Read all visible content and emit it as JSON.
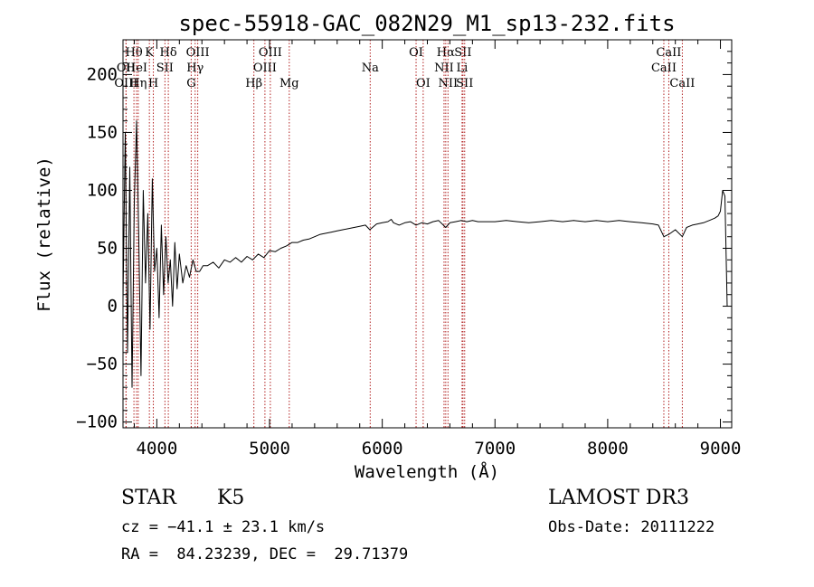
{
  "chart_data": {
    "type": "line",
    "title": "spec-55918-GAC_082N29_M1_sp13-232.fits",
    "xlabel": "Wavelength (Å)",
    "ylabel": "Flux (relative)",
    "xlim": [
      3700,
      9100
    ],
    "ylim": [
      -105,
      230
    ],
    "x_ticks": [
      4000,
      5000,
      6000,
      7000,
      8000,
      9000
    ],
    "y_ticks": [
      -100,
      -50,
      0,
      50,
      100,
      150,
      200
    ],
    "series": [
      {
        "name": "flux",
        "x": [
          3700,
          3720,
          3740,
          3760,
          3780,
          3800,
          3820,
          3840,
          3860,
          3880,
          3900,
          3920,
          3940,
          3960,
          3980,
          4000,
          4020,
          4040,
          4060,
          4080,
          4100,
          4120,
          4140,
          4160,
          4180,
          4200,
          4230,
          4260,
          4290,
          4320,
          4350,
          4380,
          4410,
          4450,
          4500,
          4550,
          4600,
          4650,
          4700,
          4750,
          4800,
          4850,
          4900,
          4950,
          5000,
          5050,
          5100,
          5150,
          5200,
          5250,
          5300,
          5350,
          5400,
          5450,
          5500,
          5550,
          5600,
          5650,
          5700,
          5750,
          5800,
          5850,
          5890,
          5950,
          6000,
          6050,
          6080,
          6100,
          6150,
          6200,
          6250,
          6300,
          6350,
          6400,
          6450,
          6500,
          6563,
          6600,
          6650,
          6700,
          6750,
          6800,
          6850,
          6900,
          6950,
          7000,
          7100,
          7200,
          7300,
          7400,
          7500,
          7600,
          7700,
          7800,
          7900,
          8000,
          8100,
          8200,
          8300,
          8400,
          8450,
          8498,
          8542,
          8600,
          8662,
          8700,
          8750,
          8800,
          8850,
          8900,
          8950,
          8980,
          9000,
          9020,
          9040,
          9060
        ],
        "y": [
          5,
          150,
          -40,
          120,
          -70,
          90,
          160,
          60,
          -60,
          100,
          20,
          80,
          -20,
          110,
          30,
          50,
          -10,
          70,
          10,
          60,
          20,
          40,
          0,
          55,
          15,
          45,
          20,
          35,
          25,
          40,
          30,
          30,
          35,
          35,
          38,
          33,
          40,
          38,
          42,
          38,
          43,
          40,
          45,
          42,
          48,
          47,
          50,
          52,
          55,
          55,
          57,
          58,
          60,
          62,
          63,
          64,
          65,
          66,
          67,
          68,
          69,
          70,
          66,
          71,
          72,
          73,
          75,
          72,
          70,
          72,
          73,
          70,
          72,
          71,
          73,
          74,
          68,
          72,
          73,
          74,
          73,
          74,
          73,
          73,
          73,
          73,
          74,
          73,
          72,
          73,
          74,
          73,
          74,
          73,
          74,
          73,
          74,
          73,
          72,
          71,
          70,
          60,
          62,
          66,
          60,
          68,
          70,
          71,
          72,
          74,
          76,
          78,
          82,
          100,
          95,
          0
        ]
      }
    ],
    "line_markers": [
      {
        "label": "Hθ",
        "x": 3797,
        "row": 1
      },
      {
        "label": "OII",
        "x": 3727,
        "row": 2
      },
      {
        "label": "OIII",
        "x": 3727,
        "row": 3
      },
      {
        "label": "HeI",
        "x": 3820,
        "row": 2
      },
      {
        "label": "Hη",
        "x": 3835,
        "row": 3
      },
      {
        "label": "K",
        "x": 3934,
        "row": 1
      },
      {
        "label": "H",
        "x": 3969,
        "row": 3
      },
      {
        "label": "SII",
        "x": 4072,
        "row": 2
      },
      {
        "label": "Hδ",
        "x": 4102,
        "row": 1
      },
      {
        "label": "OIII",
        "x": 4363,
        "row": 1
      },
      {
        "label": "Hγ",
        "x": 4340,
        "row": 2
      },
      {
        "label": "G",
        "x": 4305,
        "row": 3
      },
      {
        "label": "Hβ",
        "x": 4861,
        "row": 3
      },
      {
        "label": "OIII",
        "x": 5007,
        "row": 1
      },
      {
        "label": "OIII",
        "x": 4959,
        "row": 2
      },
      {
        "label": "Mg",
        "x": 5175,
        "row": 3
      },
      {
        "label": "Na",
        "x": 5893,
        "row": 2
      },
      {
        "label": "OI",
        "x": 6300,
        "row": 1
      },
      {
        "label": "OI",
        "x": 6363,
        "row": 3
      },
      {
        "label": "Hα",
        "x": 6563,
        "row": 1
      },
      {
        "label": "NII",
        "x": 6548,
        "row": 2
      },
      {
        "label": "NII",
        "x": 6583,
        "row": 3
      },
      {
        "label": "SII",
        "x": 6716,
        "row": 1
      },
      {
        "label": "Li",
        "x": 6708,
        "row": 2
      },
      {
        "label": "SII",
        "x": 6731,
        "row": 3
      },
      {
        "label": "CaII",
        "x": 8542,
        "row": 1
      },
      {
        "label": "CaII",
        "x": 8498,
        "row": 2
      },
      {
        "label": "CaII",
        "x": 8662,
        "row": 3
      }
    ],
    "colors": {
      "spectrum": "#000000",
      "line_markers": "#b22222",
      "axes": "#000000"
    }
  },
  "info": {
    "object_class": "STAR",
    "subclass": "K5",
    "survey": "LAMOST DR3",
    "redshift": "cz = −41.1 ± 23.1 km/s",
    "obs_date": "Obs-Date: 20111222",
    "coords": "RA =  84.23239, DEC =  29.71379"
  }
}
